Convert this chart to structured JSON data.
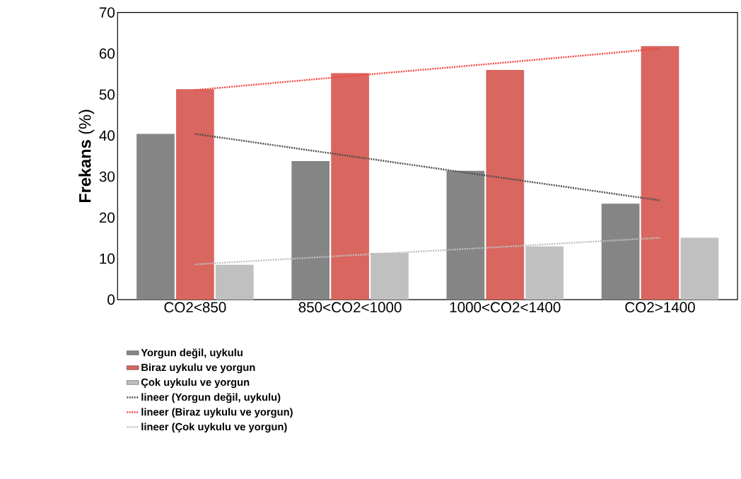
{
  "chart_data": {
    "type": "bar",
    "ylabel": "**Frekans** (%)",
    "categories": [
      "CO2<850",
      "850<CO2<1000",
      "1000<CO2<1400",
      "CO2>1400"
    ],
    "series": [
      {
        "name": "Yorgun değil, uykulu",
        "color": "#858585",
        "values": [
          40.4,
          33.8,
          31.4,
          23.4
        ]
      },
      {
        "name": "Biraz uykulu ve yorgun",
        "color": "#d9665f",
        "values": [
          51.3,
          55.2,
          56.0,
          61.8
        ]
      },
      {
        "name": "Çok uykulu ve yorgun",
        "color": "#c0c0c0",
        "values": [
          8.5,
          11.4,
          13.0,
          15.1
        ]
      },
      {
        "name": "lineer (Yorgun değil, uykulu)",
        "type": "line",
        "line_style": "dotted",
        "color": "#4d4d4d",
        "values": [
          40.4,
          35.0,
          29.6,
          24.2
        ]
      },
      {
        "name": "lineer (Biraz uykulu ve yorgun)",
        "type": "line",
        "line_style": "dotted",
        "color": "#f0483e",
        "values": [
          51.1,
          54.5,
          57.8,
          61.2
        ]
      },
      {
        "name": "lineer (Çok uykulu ve yorgun)",
        "type": "line",
        "line_style": "dotted",
        "color": "#bfbfbf",
        "values": [
          8.6,
          10.8,
          12.9,
          15.1
        ]
      }
    ],
    "ylim": [
      0,
      70
    ],
    "yticks": [
      0,
      10,
      20,
      30,
      40,
      50,
      60,
      70
    ],
    "legend": "bottom"
  }
}
